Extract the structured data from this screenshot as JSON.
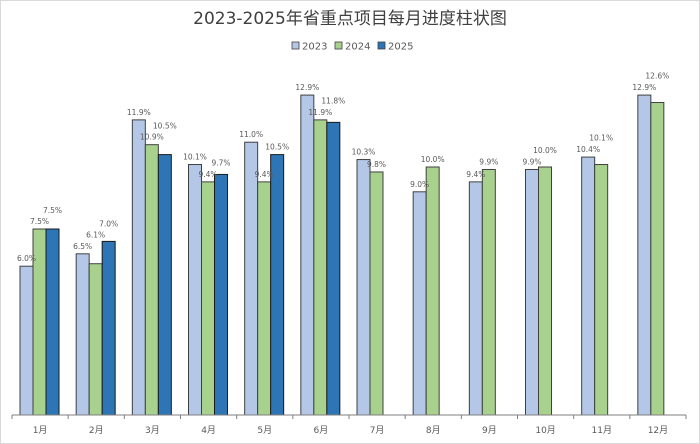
{
  "chart_data": {
    "type": "bar",
    "title": "2023-2025年省重点项目每月进度柱状图",
    "categories": [
      "1月",
      "2月",
      "3月",
      "4月",
      "5月",
      "6月",
      "7月",
      "8月",
      "9月",
      "10月",
      "11月",
      "12月"
    ],
    "series": [
      {
        "name": "2023",
        "color": "#b4c7e7",
        "values": [
          6.0,
          6.5,
          11.9,
          10.1,
          11.0,
          12.9,
          10.3,
          9.0,
          9.4,
          9.9,
          10.4,
          12.9
        ]
      },
      {
        "name": "2024",
        "color": "#a9d18e",
        "values": [
          7.5,
          6.1,
          10.9,
          9.4,
          9.4,
          11.9,
          9.8,
          10.0,
          9.9,
          10.0,
          10.1,
          12.6
        ]
      },
      {
        "name": "2025",
        "color": "#2e75b6",
        "values": [
          7.5,
          7.0,
          10.5,
          9.7,
          10.5,
          11.8,
          null,
          null,
          null,
          null,
          null,
          null
        ]
      }
    ],
    "value_format": "%",
    "legend": "top",
    "grid": false,
    "ylim": [
      0,
      13
    ]
  }
}
